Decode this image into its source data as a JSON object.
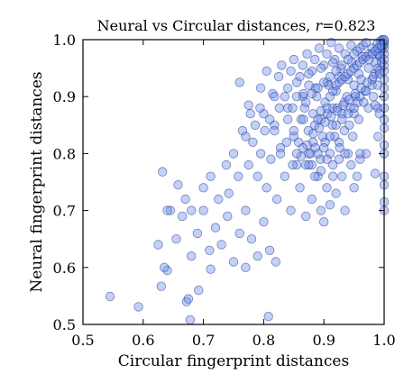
{
  "chart_data": {
    "type": "scatter",
    "title_main": "Neural vs Circular distances, ",
    "title_stat": "r",
    "title_value": "=0.823",
    "xlabel": "Circular fingerprint distances",
    "ylabel": "Neural fingerprint distances",
    "xlim": [
      0.5,
      1.0
    ],
    "ylim": [
      0.5,
      1.0
    ],
    "xticks": [
      0.5,
      0.6,
      0.7,
      0.8,
      0.9,
      1.0
    ],
    "xtick_labels": [
      "0.5",
      "0.6",
      "0.7",
      "0.8",
      "0.9",
      "1.0"
    ],
    "yticks": [
      0.5,
      0.6,
      0.7,
      0.8,
      0.9,
      1.0
    ],
    "ytick_labels": [
      "0.5",
      "0.6",
      "0.7",
      "0.8",
      "0.9",
      "1.0"
    ],
    "grid": false,
    "point_color": "#6f8ff2",
    "edge_color": "#1c2f7a",
    "points": [
      [
        0.545,
        0.549
      ],
      [
        0.592,
        0.531
      ],
      [
        0.63,
        0.567
      ],
      [
        0.64,
        0.595
      ],
      [
        0.672,
        0.54
      ],
      [
        0.675,
        0.545
      ],
      [
        0.678,
        0.508
      ],
      [
        0.692,
        0.56
      ],
      [
        0.712,
        0.597
      ],
      [
        0.808,
        0.514
      ],
      [
        0.625,
        0.64
      ],
      [
        0.635,
        0.6
      ],
      [
        0.645,
        0.7
      ],
      [
        0.655,
        0.65
      ],
      [
        0.665,
        0.69
      ],
      [
        0.68,
        0.62
      ],
      [
        0.69,
        0.66
      ],
      [
        0.7,
        0.7
      ],
      [
        0.71,
        0.63
      ],
      [
        0.72,
        0.67
      ],
      [
        0.73,
        0.64
      ],
      [
        0.74,
        0.69
      ],
      [
        0.75,
        0.61
      ],
      [
        0.76,
        0.66
      ],
      [
        0.77,
        0.6
      ],
      [
        0.78,
        0.65
      ],
      [
        0.79,
        0.62
      ],
      [
        0.8,
        0.68
      ],
      [
        0.81,
        0.63
      ],
      [
        0.82,
        0.61
      ],
      [
        0.632,
        0.768
      ],
      [
        0.64,
        0.7
      ],
      [
        0.658,
        0.745
      ],
      [
        0.67,
        0.72
      ],
      [
        0.68,
        0.7
      ],
      [
        0.7,
        0.74
      ],
      [
        0.712,
        0.76
      ],
      [
        0.725,
        0.72
      ],
      [
        0.738,
        0.78
      ],
      [
        0.742,
        0.73
      ],
      [
        0.75,
        0.8
      ],
      [
        0.758,
        0.76
      ],
      [
        0.765,
        0.84
      ],
      [
        0.77,
        0.7
      ],
      [
        0.775,
        0.78
      ],
      [
        0.782,
        0.82
      ],
      [
        0.79,
        0.76
      ],
      [
        0.795,
        0.8
      ],
      [
        0.8,
        0.87
      ],
      [
        0.805,
        0.74
      ],
      [
        0.812,
        0.79
      ],
      [
        0.818,
        0.85
      ],
      [
        0.822,
        0.72
      ],
      [
        0.828,
        0.81
      ],
      [
        0.835,
        0.76
      ],
      [
        0.84,
        0.88
      ],
      [
        0.845,
        0.7
      ],
      [
        0.85,
        0.83
      ],
      [
        0.855,
        0.78
      ],
      [
        0.86,
        0.74
      ],
      [
        0.865,
        0.9
      ],
      [
        0.87,
        0.69
      ],
      [
        0.875,
        0.8
      ],
      [
        0.88,
        0.72
      ],
      [
        0.885,
        0.85
      ],
      [
        0.89,
        0.76
      ],
      [
        0.895,
        0.7
      ],
      [
        0.9,
        0.68
      ],
      [
        0.905,
        0.74
      ],
      [
        0.91,
        0.71
      ],
      [
        0.915,
        0.78
      ],
      [
        0.92,
        0.73
      ],
      [
        0.925,
        0.82
      ],
      [
        0.93,
        0.76
      ],
      [
        0.935,
        0.7
      ],
      [
        0.94,
        0.8
      ],
      [
        0.945,
        0.78
      ],
      [
        0.95,
        0.74
      ],
      [
        0.96,
        0.79
      ],
      [
        0.97,
        0.8
      ],
      [
        0.76,
        0.925
      ],
      [
        0.775,
        0.885
      ],
      [
        0.795,
        0.915
      ],
      [
        0.805,
        0.945
      ],
      [
        0.815,
        0.905
      ],
      [
        0.825,
        0.935
      ],
      [
        0.83,
        0.955
      ],
      [
        0.84,
        0.915
      ],
      [
        0.85,
        0.965
      ],
      [
        0.86,
        0.935
      ],
      [
        0.866,
        0.905
      ],
      [
        0.872,
        0.975
      ],
      [
        0.88,
        0.945
      ],
      [
        0.886,
        0.915
      ],
      [
        0.892,
        0.985
      ],
      [
        0.9,
        0.955
      ],
      [
        0.906,
        0.925
      ],
      [
        0.912,
        0.995
      ],
      [
        0.918,
        0.965
      ],
      [
        0.925,
        0.935
      ],
      [
        0.84,
        0.86
      ],
      [
        0.848,
        0.88
      ],
      [
        0.855,
        0.9
      ],
      [
        0.862,
        0.86
      ],
      [
        0.868,
        0.88
      ],
      [
        0.875,
        0.92
      ],
      [
        0.882,
        0.87
      ],
      [
        0.888,
        0.9
      ],
      [
        0.895,
        0.86
      ],
      [
        0.902,
        0.89
      ],
      [
        0.908,
        0.92
      ],
      [
        0.915,
        0.88
      ],
      [
        0.92,
        0.91
      ],
      [
        0.928,
        0.95
      ],
      [
        0.934,
        0.89
      ],
      [
        0.94,
        0.93
      ],
      [
        0.946,
        0.96
      ],
      [
        0.952,
        0.9
      ],
      [
        0.958,
        0.94
      ],
      [
        0.964,
        0.97
      ],
      [
        0.85,
        0.84
      ],
      [
        0.858,
        0.82
      ],
      [
        0.866,
        0.86
      ],
      [
        0.874,
        0.84
      ],
      [
        0.882,
        0.82
      ],
      [
        0.89,
        0.86
      ],
      [
        0.898,
        0.83
      ],
      [
        0.906,
        0.87
      ],
      [
        0.914,
        0.85
      ],
      [
        0.922,
        0.88
      ],
      [
        0.93,
        0.87
      ],
      [
        0.938,
        0.9
      ],
      [
        0.944,
        0.88
      ],
      [
        0.95,
        0.92
      ],
      [
        0.956,
        0.89
      ],
      [
        0.962,
        0.93
      ],
      [
        0.968,
        0.91
      ],
      [
        0.974,
        0.95
      ],
      [
        0.98,
        0.92
      ],
      [
        0.986,
        0.96
      ],
      [
        0.87,
        0.78
      ],
      [
        0.878,
        0.8
      ],
      [
        0.886,
        0.81
      ],
      [
        0.894,
        0.79
      ],
      [
        0.902,
        0.82
      ],
      [
        0.91,
        0.8
      ],
      [
        0.918,
        0.83
      ],
      [
        0.926,
        0.81
      ],
      [
        0.934,
        0.84
      ],
      [
        0.942,
        0.85
      ],
      [
        0.95,
        0.87
      ],
      [
        0.958,
        0.86
      ],
      [
        0.966,
        0.89
      ],
      [
        0.974,
        0.88
      ],
      [
        0.982,
        0.9
      ],
      [
        0.99,
        0.88
      ],
      [
        0.985,
        0.94
      ],
      [
        0.975,
        0.975
      ],
      [
        0.965,
        0.99
      ],
      [
        0.955,
        0.98
      ],
      [
        0.945,
        0.99
      ],
      [
        0.935,
        0.975
      ],
      [
        0.925,
        0.985
      ],
      [
        0.915,
        0.96
      ],
      [
        0.905,
        0.975
      ],
      [
        0.895,
        0.95
      ],
      [
        0.885,
        0.965
      ],
      [
        0.875,
        0.94
      ],
      [
        0.865,
        0.955
      ],
      [
        0.855,
        0.925
      ],
      [
        0.845,
        0.945
      ],
      [
        0.835,
        0.9
      ],
      [
        0.826,
        0.88
      ],
      [
        0.818,
        0.9
      ],
      [
        0.81,
        0.86
      ],
      [
        0.802,
        0.84
      ],
      [
        0.794,
        0.88
      ],
      [
        0.786,
        0.85
      ],
      [
        0.778,
        0.87
      ],
      [
        0.77,
        0.83
      ],
      [
        0.88,
        0.78
      ],
      [
        0.89,
        0.8
      ],
      [
        0.9,
        0.81
      ],
      [
        0.91,
        0.83
      ],
      [
        0.92,
        0.85
      ],
      [
        0.93,
        0.86
      ],
      [
        0.94,
        0.87
      ],
      [
        0.95,
        0.88
      ],
      [
        0.96,
        0.9
      ],
      [
        0.97,
        0.91
      ],
      [
        0.98,
        0.93
      ],
      [
        0.99,
        0.95
      ],
      [
        0.993,
        0.97
      ],
      [
        0.996,
        0.985
      ],
      [
        0.998,
        0.995
      ],
      [
        0.997,
        1.0
      ],
      [
        0.999,
        0.99
      ],
      [
        0.994,
        0.998
      ],
      [
        0.991,
        0.975
      ],
      [
        0.988,
        0.992
      ],
      [
        0.862,
        0.795
      ],
      [
        0.872,
        0.815
      ],
      [
        0.882,
        0.835
      ],
      [
        0.892,
        0.845
      ],
      [
        0.902,
        0.855
      ],
      [
        0.912,
        0.865
      ],
      [
        0.922,
        0.875
      ],
      [
        0.932,
        0.885
      ],
      [
        0.942,
        0.895
      ],
      [
        0.952,
        0.905
      ],
      [
        0.962,
        0.915
      ],
      [
        0.972,
        0.925
      ],
      [
        0.982,
        0.935
      ],
      [
        0.992,
        0.945
      ],
      [
        0.87,
        0.89
      ],
      [
        0.88,
        0.905
      ],
      [
        0.89,
        0.915
      ],
      [
        0.9,
        0.925
      ],
      [
        0.91,
        0.935
      ],
      [
        0.92,
        0.945
      ],
      [
        0.93,
        0.955
      ],
      [
        0.94,
        0.965
      ],
      [
        0.95,
        0.975
      ],
      [
        0.96,
        0.985
      ],
      [
        0.97,
        0.995
      ],
      [
        0.98,
        0.985
      ],
      [
        0.99,
        0.975
      ],
      [
        0.996,
        0.96
      ],
      [
        0.993,
        0.94
      ],
      [
        0.989,
        0.92
      ],
      [
        1.0,
        0.7
      ],
      [
        1.0,
        0.715
      ],
      [
        1.0,
        0.745
      ],
      [
        1.0,
        0.76
      ],
      [
        1.0,
        0.8
      ],
      [
        1.0,
        0.815
      ],
      [
        1.0,
        0.845
      ],
      [
        1.0,
        0.86
      ],
      [
        1.0,
        0.88
      ],
      [
        1.0,
        0.9
      ],
      [
        1.0,
        0.915
      ],
      [
        1.0,
        0.93
      ],
      [
        1.0,
        0.945
      ],
      [
        1.0,
        0.955
      ],
      [
        1.0,
        0.965
      ],
      [
        1.0,
        0.975
      ],
      [
        1.0,
        0.985
      ],
      [
        1.0,
        0.992
      ],
      [
        1.0,
        0.998
      ],
      [
        1.0,
        1.0
      ],
      [
        0.985,
        0.765
      ],
      [
        0.99,
        0.83
      ],
      [
        0.992,
        0.87
      ],
      [
        0.985,
        0.885
      ],
      [
        0.96,
        0.8
      ],
      [
        0.955,
        0.76
      ],
      [
        0.948,
        0.83
      ],
      [
        0.935,
        0.8
      ],
      [
        0.925,
        0.79
      ],
      [
        0.915,
        0.76
      ],
      [
        0.905,
        0.79
      ],
      [
        0.895,
        0.77
      ],
      [
        0.885,
        0.76
      ],
      [
        0.875,
        0.78
      ],
      [
        0.865,
        0.81
      ],
      [
        0.855,
        0.8
      ],
      [
        0.848,
        0.78
      ],
      [
        0.838,
        0.82
      ],
      [
        0.828,
        0.8
      ],
      [
        0.818,
        0.84
      ],
      [
        0.91,
        0.9
      ],
      [
        0.915,
        0.91
      ],
      [
        0.92,
        0.92
      ],
      [
        0.925,
        0.925
      ],
      [
        0.93,
        0.93
      ],
      [
        0.935,
        0.935
      ],
      [
        0.94,
        0.94
      ],
      [
        0.945,
        0.945
      ],
      [
        0.95,
        0.95
      ],
      [
        0.955,
        0.955
      ],
      [
        0.96,
        0.96
      ],
      [
        0.965,
        0.965
      ],
      [
        0.97,
        0.97
      ],
      [
        0.975,
        0.965
      ],
      [
        0.98,
        0.975
      ],
      [
        0.985,
        0.98
      ],
      [
        0.99,
        0.985
      ],
      [
        0.995,
        0.99
      ],
      [
        0.905,
        0.88
      ],
      [
        0.895,
        0.875
      ]
    ]
  }
}
